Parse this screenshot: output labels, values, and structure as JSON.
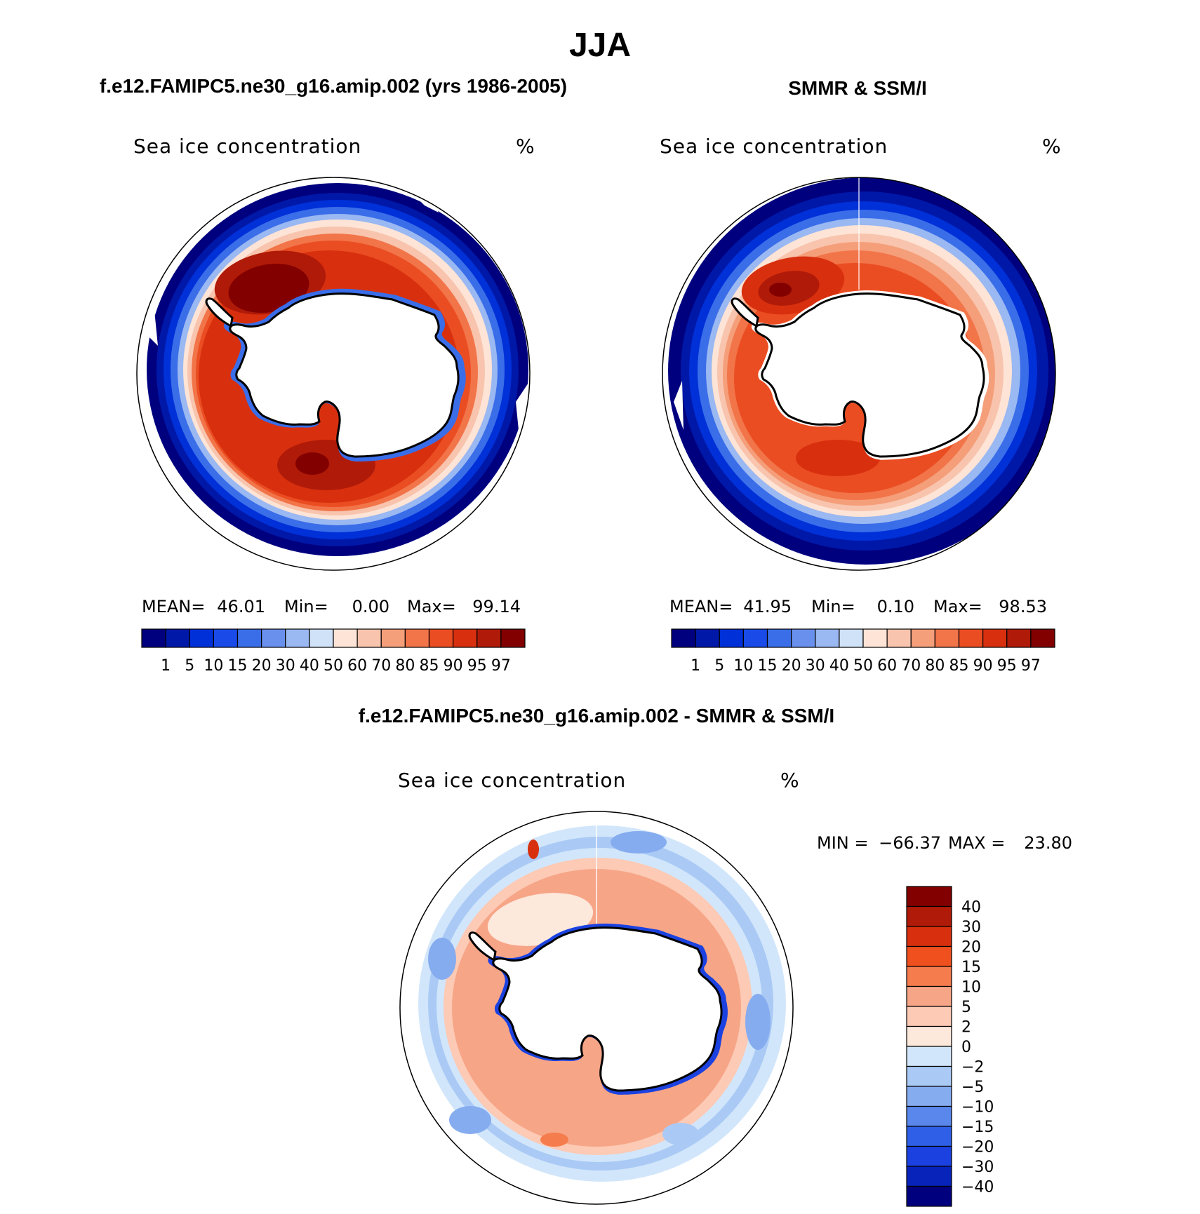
{
  "figure": {
    "title": "JJA",
    "quantity": "Sea ice concentration",
    "units": "%"
  },
  "panels": [
    {
      "id": "model",
      "heading": "f.e12.FAMIPC5.ne30_g16.amip.002 (yrs 1986-2005)",
      "variable_label": "Sea ice concentration",
      "units_label": "%",
      "stats": {
        "mean_label": "MEAN=",
        "mean": "46.01",
        "min_label": "Min=",
        "min": "0.00",
        "max_label": "Max=",
        "max": "99.14"
      }
    },
    {
      "id": "obs",
      "heading": "SMMR & SSM/I",
      "variable_label": "Sea ice concentration",
      "units_label": "%",
      "stats": {
        "mean_label": "MEAN=",
        "mean": "41.95",
        "min_label": "Min=",
        "min": "0.10",
        "max_label": "Max=",
        "max": "98.53"
      }
    },
    {
      "id": "diff",
      "heading": "f.e12.FAMIPC5.ne30_g16.amip.002 - SMMR & SSM/I",
      "variable_label": "Sea ice concentration",
      "units_label": "%",
      "stats": {
        "min_label": "MIN =",
        "min": "−66.37",
        "max_label": "MAX =",
        "max": "23.80"
      }
    }
  ],
  "colorbars": {
    "concentration": {
      "colors": [
        "#00007f",
        "#0018a8",
        "#0030d8",
        "#1a4be8",
        "#3a6de8",
        "#6890ec",
        "#9ab8f2",
        "#cfe2f8",
        "#fde4d6",
        "#f8c4ad",
        "#f59e7a",
        "#f27449",
        "#eb4d22",
        "#d8300f",
        "#b01a08",
        "#820000"
      ],
      "labels": [
        "1",
        "5",
        "10",
        "15",
        "20",
        "30",
        "40",
        "50",
        "60",
        "70",
        "80",
        "85",
        "90",
        "95",
        "97"
      ]
    },
    "difference": {
      "colors": [
        "#820000",
        "#b01a08",
        "#d8300f",
        "#f0501d",
        "#f57c4d",
        "#f7a587",
        "#fccab5",
        "#fde8dc",
        "#d2e6fb",
        "#aacaf5",
        "#86acf0",
        "#5a87ec",
        "#2f5fe6",
        "#1b42e0",
        "#0823b9",
        "#00007f"
      ],
      "labels": [
        "40",
        "30",
        "20",
        "15",
        "10",
        "5",
        "2",
        "0",
        "−2",
        "−5",
        "−10",
        "−15",
        "−20",
        "−30",
        "−40"
      ]
    }
  },
  "map_fields": {
    "model": {
      "min": 0.0,
      "mean": 46.01,
      "max": 99.14
    },
    "obs": {
      "min": 0.1,
      "mean": 41.95,
      "max": 98.53
    },
    "diff": {
      "min": -66.37,
      "max": 23.8
    }
  }
}
